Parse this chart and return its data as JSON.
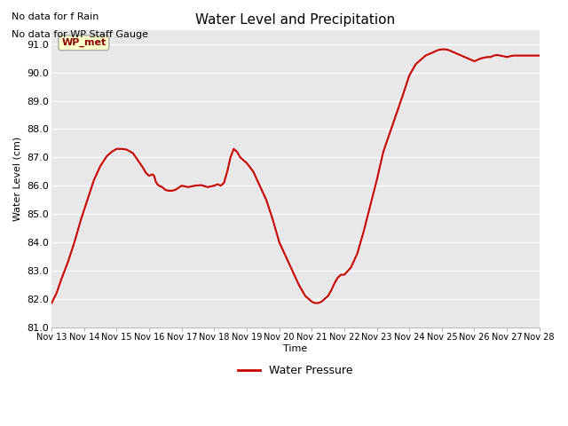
{
  "title": "Water Level and Precipitation",
  "xlabel": "Time",
  "ylabel": "Water Level (cm)",
  "ylim": [
    81.0,
    91.5
  ],
  "yticks": [
    81.0,
    82.0,
    83.0,
    84.0,
    85.0,
    86.0,
    87.0,
    88.0,
    89.0,
    90.0,
    91.0
  ],
  "xtick_labels": [
    "Nov 13",
    "Nov 14",
    "Nov 15",
    "Nov 16",
    "Nov 17",
    "Nov 18",
    "Nov 19",
    "Nov 20",
    "Nov 21",
    "Nov 22",
    "Nov 23",
    "Nov 24",
    "Nov 25",
    "Nov 26",
    "Nov 27",
    "Nov 28"
  ],
  "line_color": "#cc0000",
  "line_width": 1.5,
  "background_color": "#e8e8e8",
  "fig_background": "#ffffff",
  "legend_label": "Water Pressure",
  "annotation_text1": "No data for f Rain",
  "annotation_text2": "No data for WP Staff Gauge",
  "legend_box_label": "WP_met",
  "legend_box_color": "#ffffcc",
  "legend_box_border": "#aaaaaa",
  "x_days": [
    13,
    13.15,
    13.3,
    13.5,
    13.7,
    13.9,
    14.1,
    14.3,
    14.5,
    14.7,
    14.85,
    15.0,
    15.15,
    15.3,
    15.5,
    15.65,
    15.8,
    15.9,
    16.0,
    16.1,
    16.15,
    16.2,
    16.25,
    16.3,
    16.4,
    16.5,
    16.6,
    16.7,
    16.8,
    17.0,
    17.2,
    17.4,
    17.6,
    17.8,
    18.0,
    18.1,
    18.2,
    18.3,
    18.4,
    18.5,
    18.6,
    18.7,
    18.8,
    19.0,
    19.2,
    19.4,
    19.6,
    19.8,
    20.0,
    20.2,
    20.4,
    20.6,
    20.8,
    21.0,
    21.05,
    21.1,
    21.2,
    21.3,
    21.4,
    21.5,
    21.6,
    21.7,
    21.8,
    21.9,
    22.0,
    22.2,
    22.4,
    22.6,
    22.8,
    23.0,
    23.2,
    23.5,
    23.8,
    24.0,
    24.2,
    24.4,
    24.5,
    24.6,
    24.7,
    24.8,
    24.85,
    24.9,
    25.0,
    25.1,
    25.2,
    25.3,
    25.4,
    25.5,
    25.6,
    25.7,
    25.8,
    25.9,
    26.0,
    26.2,
    26.4,
    26.5,
    26.6,
    26.7,
    26.8,
    27.0,
    27.2,
    27.5,
    27.8,
    28.0
  ],
  "y_values": [
    81.85,
    82.2,
    82.7,
    83.3,
    84.0,
    84.8,
    85.5,
    86.2,
    86.7,
    87.05,
    87.2,
    87.3,
    87.3,
    87.28,
    87.15,
    86.9,
    86.65,
    86.45,
    86.35,
    86.4,
    86.35,
    86.15,
    86.05,
    86.0,
    85.95,
    85.85,
    85.82,
    85.82,
    85.85,
    86.0,
    85.95,
    86.0,
    86.02,
    85.95,
    86.0,
    86.05,
    86.0,
    86.1,
    86.5,
    87.0,
    87.3,
    87.2,
    87.0,
    86.8,
    86.5,
    86.0,
    85.5,
    84.8,
    84.0,
    83.5,
    83.0,
    82.5,
    82.1,
    81.9,
    81.87,
    81.85,
    81.85,
    81.9,
    82.0,
    82.1,
    82.3,
    82.55,
    82.75,
    82.85,
    82.85,
    83.1,
    83.6,
    84.4,
    85.3,
    86.2,
    87.2,
    88.2,
    89.2,
    89.9,
    90.3,
    90.5,
    90.6,
    90.65,
    90.7,
    90.75,
    90.78,
    90.8,
    90.82,
    90.82,
    90.8,
    90.75,
    90.7,
    90.65,
    90.6,
    90.55,
    90.5,
    90.45,
    90.4,
    90.5,
    90.55,
    90.55,
    90.6,
    90.62,
    90.6,
    90.55,
    90.6,
    90.6,
    90.6,
    90.6
  ]
}
